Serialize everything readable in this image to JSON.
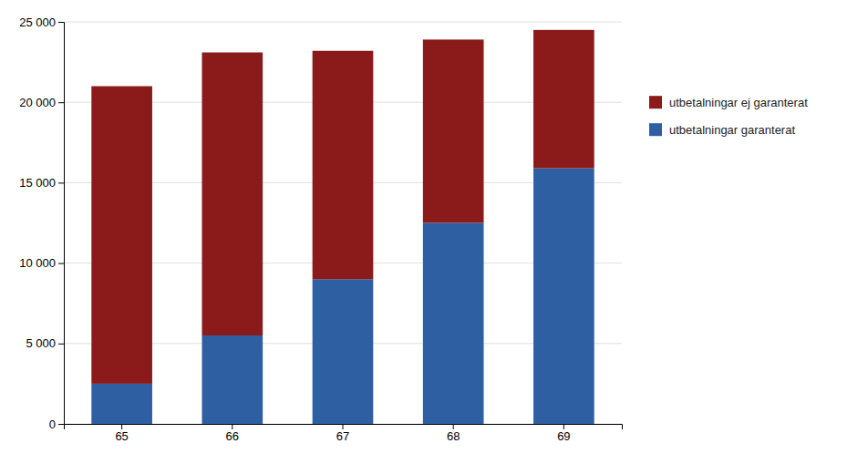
{
  "chart_data": {
    "type": "bar",
    "stacked": true,
    "categories": [
      "65",
      "66",
      "67",
      "68",
      "69"
    ],
    "series": [
      {
        "name": "utbetalningar garanterat",
        "color": "#2E5FA3",
        "values": [
          2500,
          5500,
          9000,
          12500,
          15900
        ]
      },
      {
        "name": "utbetalningar ej garanterat",
        "color": "#8B1A1A",
        "values": [
          18500,
          17600,
          14200,
          11400,
          8600
        ]
      }
    ],
    "ylim": [
      0,
      25000
    ],
    "yticks": [
      0,
      {
        "value": 5000,
        "label": "5 000"
      },
      {
        "value": 10000,
        "label": "10 000"
      },
      {
        "value": 15000,
        "label": "15 000"
      },
      {
        "value": 20000,
        "label": "20 000"
      },
      {
        "value": 25000,
        "label": "25 000"
      }
    ],
    "grid": true,
    "legend": "right"
  }
}
